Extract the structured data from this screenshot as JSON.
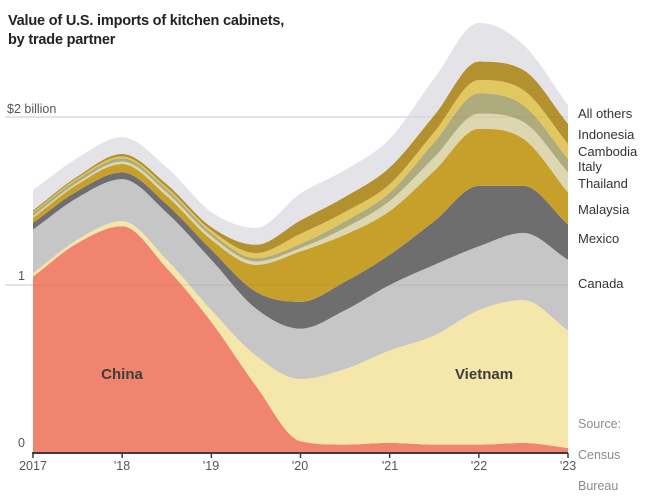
{
  "title": {
    "line1": "Value of U.S. imports of kitchen cabinets,",
    "line2": "by trade partner"
  },
  "axis": {
    "y_top_label": "$2 billion",
    "y_mid_label": "1",
    "y_zero_label": "0",
    "x_ticks": [
      "2017",
      "'18",
      "'19",
      "'20",
      "'21",
      "'22",
      "'23"
    ]
  },
  "source": {
    "line1": "Source:",
    "line2": "Census",
    "line3": "Bureau"
  },
  "chart_data": {
    "type": "area",
    "stacked": true,
    "title": "Value of U.S. imports of kitchen cabinets, by trade partner",
    "unit": "billion USD",
    "ylim": [
      0,
      2.6
    ],
    "gridline_values": [
      1,
      2
    ],
    "x": [
      2017,
      2017.5,
      2018,
      2018.5,
      2019,
      2019.5,
      2020,
      2020.5,
      2021,
      2021.5,
      2022,
      2022.5,
      2023
    ],
    "x_tick_years": [
      2017,
      2018,
      2019,
      2020,
      2021,
      2022,
      2023
    ],
    "series": [
      {
        "name": "China",
        "color": "#F0846F",
        "values": [
          1.05,
          1.25,
          1.35,
          1.1,
          0.78,
          0.4,
          0.07,
          0.05,
          0.06,
          0.05,
          0.05,
          0.06,
          0.03
        ]
      },
      {
        "name": "Vietnam",
        "color": "#F5E6A9",
        "values": [
          0.02,
          0.02,
          0.03,
          0.05,
          0.07,
          0.18,
          0.37,
          0.45,
          0.55,
          0.65,
          0.8,
          0.85,
          0.7
        ]
      },
      {
        "name": "Canada",
        "color": "#C7C6C7",
        "values": [
          0.26,
          0.25,
          0.25,
          0.28,
          0.3,
          0.28,
          0.3,
          0.35,
          0.39,
          0.42,
          0.38,
          0.4,
          0.42
        ]
      },
      {
        "name": "Mexico",
        "color": "#6F6E6F",
        "values": [
          0.04,
          0.04,
          0.04,
          0.05,
          0.06,
          0.1,
          0.16,
          0.17,
          0.18,
          0.26,
          0.36,
          0.28,
          0.21
        ]
      },
      {
        "name": "Malaysia",
        "color": "#C7A02C",
        "values": [
          0.03,
          0.04,
          0.05,
          0.05,
          0.06,
          0.16,
          0.3,
          0.28,
          0.26,
          0.3,
          0.34,
          0.28,
          0.19
        ]
      },
      {
        "name": "Thailand",
        "color": "#DDD7B1",
        "values": [
          0.01,
          0.01,
          0.015,
          0.02,
          0.02,
          0.02,
          0.02,
          0.04,
          0.06,
          0.08,
          0.09,
          0.1,
          0.12
        ]
      },
      {
        "name": "Italy",
        "color": "#AEAB7D",
        "values": [
          0.02,
          0.02,
          0.02,
          0.02,
          0.02,
          0.02,
          0.025,
          0.04,
          0.05,
          0.09,
          0.12,
          0.1,
          0.08
        ]
      },
      {
        "name": "Cambodia",
        "color": "#E2C65F",
        "values": [
          0.005,
          0.007,
          0.01,
          0.01,
          0.015,
          0.03,
          0.06,
          0.055,
          0.05,
          0.06,
          0.08,
          0.09,
          0.09
        ]
      },
      {
        "name": "Indonesia",
        "color": "#B3912E",
        "values": [
          0.01,
          0.01,
          0.015,
          0.02,
          0.02,
          0.05,
          0.08,
          0.09,
          0.1,
          0.1,
          0.11,
          0.12,
          0.12
        ]
      },
      {
        "name": "All others",
        "color": "#E4E4E8",
        "values": [
          0.12,
          0.11,
          0.1,
          0.1,
          0.09,
          0.1,
          0.16,
          0.16,
          0.17,
          0.22,
          0.23,
          0.15,
          0.11
        ]
      }
    ]
  }
}
